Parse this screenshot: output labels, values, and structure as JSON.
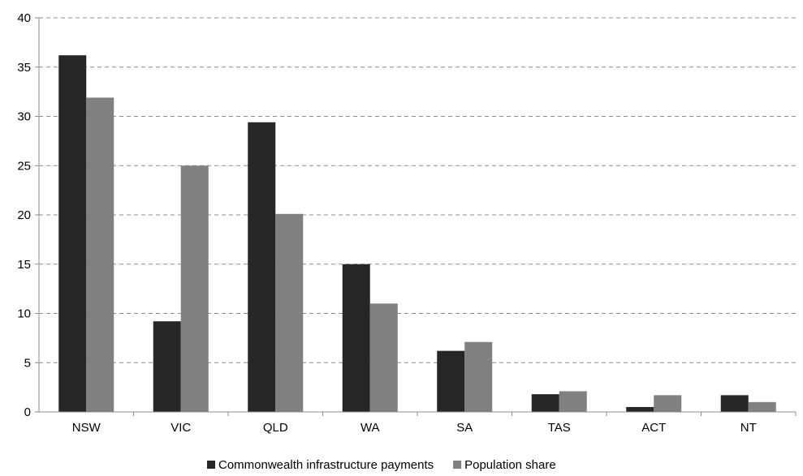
{
  "chart_data": {
    "type": "bar",
    "categories": [
      "NSW",
      "VIC",
      "QLD",
      "WA",
      "SA",
      "TAS",
      "ACT",
      "NT"
    ],
    "series": [
      {
        "name": "Commonwealth infrastructure payments",
        "color": "#262626",
        "values": [
          36.2,
          9.2,
          29.4,
          15.0,
          6.2,
          1.8,
          0.5,
          1.7
        ]
      },
      {
        "name": "Population share",
        "color": "#808080",
        "values": [
          31.9,
          25.0,
          20.1,
          11.0,
          7.1,
          2.1,
          1.7,
          1.0
        ]
      }
    ],
    "ylim": [
      0,
      40
    ],
    "yticks": [
      0,
      5,
      10,
      15,
      20,
      25,
      30,
      35,
      40
    ],
    "ytick_labels": [
      "0",
      "5",
      "10",
      "15",
      "20",
      "25",
      "30",
      "35",
      "40"
    ],
    "grid": "horizontal-dashed",
    "legend_position": "bottom"
  }
}
